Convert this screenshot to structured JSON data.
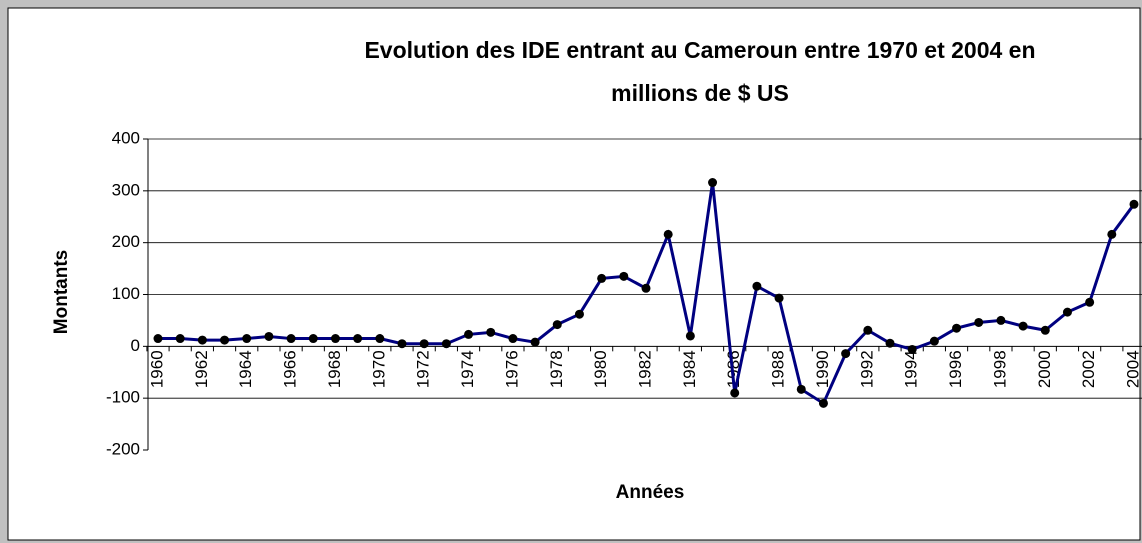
{
  "chart_data": {
    "type": "line",
    "title": [
      "Evolution des IDE entrant au Cameroun entre 1970 et 2004 en",
      "millions de $ US"
    ],
    "x_label": "Années",
    "y_label": "Montants",
    "categories": [
      "1960",
      null,
      "1962",
      null,
      "1964",
      null,
      "1966",
      null,
      "1968",
      null,
      "1970",
      null,
      "1972",
      null,
      "1974",
      null,
      "1976",
      null,
      "1978",
      null,
      "1980",
      null,
      "1982",
      null,
      "1984",
      null,
      "1986",
      null,
      "1988",
      null,
      "1990",
      null,
      "1992",
      null,
      "1994",
      null,
      "1996",
      null,
      "1998",
      null,
      "2000",
      null,
      "2002",
      null,
      "2004"
    ],
    "series": [
      {
        "name": "IDE",
        "color": "#000080",
        "values": [
          15,
          15,
          12,
          12,
          15,
          19,
          15,
          15,
          15,
          15,
          15,
          5,
          5,
          5,
          23,
          27,
          15,
          8,
          42,
          62,
          131,
          135,
          112,
          216,
          20,
          316,
          -90,
          116,
          93,
          -83,
          -110,
          -14,
          31,
          6,
          -6,
          10,
          35,
          46,
          50,
          39,
          31,
          66,
          85,
          216,
          274
        ]
      }
    ],
    "ylim": [
      -200,
      400
    ],
    "yticks": [
      -200,
      -100,
      0,
      100,
      200,
      300,
      400
    ],
    "grid": true
  }
}
